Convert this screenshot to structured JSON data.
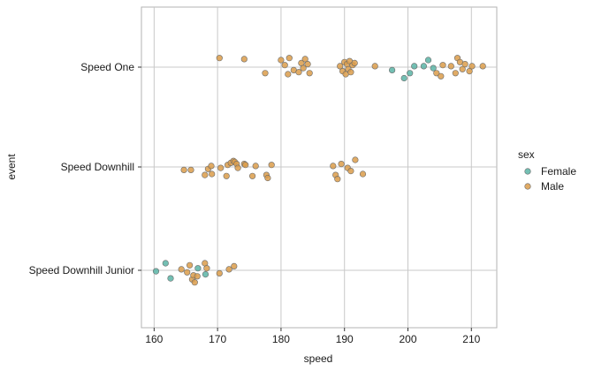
{
  "chart_data": {
    "type": "scatter",
    "xlabel": "speed",
    "ylabel": "event",
    "xlim": [
      158,
      214
    ],
    "x_ticks": [
      "160",
      "170",
      "180",
      "190",
      "200",
      "210"
    ],
    "categories": [
      "Speed One",
      "Speed Downhill",
      "Speed Downhill Junior"
    ],
    "grid": true,
    "legend": {
      "title": "sex",
      "position": "right",
      "entries": [
        {
          "label": "Female",
          "color": "#5ab4a6"
        },
        {
          "label": "Male",
          "color": "#db9c4a"
        }
      ]
    },
    "series": [
      {
        "name": "Female",
        "color": "#5ab4a6",
        "points": [
          {
            "category": "Speed One",
            "x": 197.5,
            "jitter": -0.03
          },
          {
            "category": "Speed One",
            "x": 199.4,
            "jitter": -0.11
          },
          {
            "category": "Speed One",
            "x": 200.3,
            "jitter": -0.06
          },
          {
            "category": "Speed One",
            "x": 201.0,
            "jitter": 0.01
          },
          {
            "category": "Speed One",
            "x": 202.5,
            "jitter": 0.01
          },
          {
            "category": "Speed One",
            "x": 203.2,
            "jitter": 0.07
          },
          {
            "category": "Speed One",
            "x": 204.0,
            "jitter": -0.01
          },
          {
            "category": "Speed Downhill Junior",
            "x": 160.3,
            "jitter": -0.01
          },
          {
            "category": "Speed Downhill Junior",
            "x": 161.8,
            "jitter": 0.07
          },
          {
            "category": "Speed Downhill Junior",
            "x": 162.6,
            "jitter": -0.08
          },
          {
            "category": "Speed Downhill Junior",
            "x": 166.9,
            "jitter": 0.02
          },
          {
            "category": "Speed Downhill Junior",
            "x": 168.1,
            "jitter": -0.04
          }
        ]
      },
      {
        "name": "Male",
        "color": "#db9c4a",
        "points": [
          {
            "category": "Speed One",
            "x": 170.3,
            "jitter": 0.09
          },
          {
            "category": "Speed One",
            "x": 174.2,
            "jitter": 0.08
          },
          {
            "category": "Speed One",
            "x": 177.5,
            "jitter": -0.06
          },
          {
            "category": "Speed One",
            "x": 180.0,
            "jitter": 0.07
          },
          {
            "category": "Speed One",
            "x": 180.6,
            "jitter": 0.02
          },
          {
            "category": "Speed One",
            "x": 181.1,
            "jitter": -0.07
          },
          {
            "category": "Speed One",
            "x": 181.3,
            "jitter": 0.09
          },
          {
            "category": "Speed One",
            "x": 182.0,
            "jitter": -0.03
          },
          {
            "category": "Speed One",
            "x": 182.8,
            "jitter": -0.05
          },
          {
            "category": "Speed One",
            "x": 183.2,
            "jitter": 0.04
          },
          {
            "category": "Speed One",
            "x": 183.5,
            "jitter": -0.01
          },
          {
            "category": "Speed One",
            "x": 183.8,
            "jitter": 0.08
          },
          {
            "category": "Speed One",
            "x": 184.2,
            "jitter": 0.03
          },
          {
            "category": "Speed One",
            "x": 184.5,
            "jitter": -0.06
          },
          {
            "category": "Speed One",
            "x": 189.3,
            "jitter": 0.01
          },
          {
            "category": "Speed One",
            "x": 189.7,
            "jitter": -0.04
          },
          {
            "category": "Speed One",
            "x": 190.0,
            "jitter": 0.05
          },
          {
            "category": "Speed One",
            "x": 190.2,
            "jitter": -0.07
          },
          {
            "category": "Speed One",
            "x": 190.4,
            "jitter": 0.03
          },
          {
            "category": "Speed One",
            "x": 190.6,
            "jitter": -0.02
          },
          {
            "category": "Speed One",
            "x": 190.8,
            "jitter": 0.06
          },
          {
            "category": "Speed One",
            "x": 191.0,
            "jitter": -0.05
          },
          {
            "category": "Speed One",
            "x": 191.3,
            "jitter": 0.02
          },
          {
            "category": "Speed One",
            "x": 191.6,
            "jitter": 0.04
          },
          {
            "category": "Speed One",
            "x": 194.8,
            "jitter": 0.01
          },
          {
            "category": "Speed One",
            "x": 204.5,
            "jitter": -0.06
          },
          {
            "category": "Speed One",
            "x": 205.2,
            "jitter": -0.09
          },
          {
            "category": "Speed One",
            "x": 205.5,
            "jitter": 0.02
          },
          {
            "category": "Speed One",
            "x": 206.8,
            "jitter": 0.01
          },
          {
            "category": "Speed One",
            "x": 207.5,
            "jitter": -0.06
          },
          {
            "category": "Speed One",
            "x": 207.8,
            "jitter": 0.09
          },
          {
            "category": "Speed One",
            "x": 208.2,
            "jitter": 0.05
          },
          {
            "category": "Speed One",
            "x": 208.6,
            "jitter": -0.02
          },
          {
            "category": "Speed One",
            "x": 209.0,
            "jitter": 0.03
          },
          {
            "category": "Speed One",
            "x": 209.7,
            "jitter": -0.04
          },
          {
            "category": "Speed One",
            "x": 210.1,
            "jitter": 0.01
          },
          {
            "category": "Speed One",
            "x": 211.8,
            "jitter": 0.01
          },
          {
            "category": "Speed Downhill",
            "x": 164.7,
            "jitter": -0.03
          },
          {
            "category": "Speed Downhill",
            "x": 165.8,
            "jitter": -0.03
          },
          {
            "category": "Speed Downhill",
            "x": 168.0,
            "jitter": -0.08
          },
          {
            "category": "Speed Downhill",
            "x": 168.5,
            "jitter": -0.02
          },
          {
            "category": "Speed Downhill",
            "x": 169.0,
            "jitter": 0.01
          },
          {
            "category": "Speed Downhill",
            "x": 169.1,
            "jitter": -0.07
          },
          {
            "category": "Speed Downhill",
            "x": 170.5,
            "jitter": -0.01
          },
          {
            "category": "Speed Downhill",
            "x": 171.4,
            "jitter": -0.09
          },
          {
            "category": "Speed Downhill",
            "x": 171.6,
            "jitter": 0.02
          },
          {
            "category": "Speed Downhill",
            "x": 172.1,
            "jitter": 0.04
          },
          {
            "category": "Speed Downhill",
            "x": 172.5,
            "jitter": 0.06
          },
          {
            "category": "Speed Downhill",
            "x": 172.7,
            "jitter": 0.05
          },
          {
            "category": "Speed Downhill",
            "x": 173.0,
            "jitter": 0.03
          },
          {
            "category": "Speed Downhill",
            "x": 173.2,
            "jitter": -0.01
          },
          {
            "category": "Speed Downhill",
            "x": 174.2,
            "jitter": 0.03
          },
          {
            "category": "Speed Downhill",
            "x": 174.4,
            "jitter": 0.02
          },
          {
            "category": "Speed Downhill",
            "x": 175.5,
            "jitter": -0.09
          },
          {
            "category": "Speed Downhill",
            "x": 176.0,
            "jitter": 0.01
          },
          {
            "category": "Speed Downhill",
            "x": 177.7,
            "jitter": -0.08
          },
          {
            "category": "Speed Downhill",
            "x": 177.9,
            "jitter": -0.11
          },
          {
            "category": "Speed Downhill",
            "x": 178.5,
            "jitter": 0.02
          },
          {
            "category": "Speed Downhill",
            "x": 188.2,
            "jitter": 0.01
          },
          {
            "category": "Speed Downhill",
            "x": 188.6,
            "jitter": -0.08
          },
          {
            "category": "Speed Downhill",
            "x": 188.9,
            "jitter": -0.12
          },
          {
            "category": "Speed Downhill",
            "x": 189.5,
            "jitter": 0.03
          },
          {
            "category": "Speed Downhill",
            "x": 190.5,
            "jitter": -0.01
          },
          {
            "category": "Speed Downhill",
            "x": 191.0,
            "jitter": -0.04
          },
          {
            "category": "Speed Downhill",
            "x": 191.7,
            "jitter": 0.07
          },
          {
            "category": "Speed Downhill",
            "x": 192.9,
            "jitter": -0.07
          },
          {
            "category": "Speed Downhill Junior",
            "x": 164.3,
            "jitter": 0.01
          },
          {
            "category": "Speed Downhill Junior",
            "x": 165.2,
            "jitter": -0.02
          },
          {
            "category": "Speed Downhill Junior",
            "x": 165.6,
            "jitter": 0.05
          },
          {
            "category": "Speed Downhill Junior",
            "x": 166.0,
            "jitter": -0.09
          },
          {
            "category": "Speed Downhill Junior",
            "x": 166.2,
            "jitter": -0.05
          },
          {
            "category": "Speed Downhill Junior",
            "x": 166.4,
            "jitter": -0.12
          },
          {
            "category": "Speed Downhill Junior",
            "x": 166.8,
            "jitter": -0.06
          },
          {
            "category": "Speed Downhill Junior",
            "x": 168.0,
            "jitter": 0.07
          },
          {
            "category": "Speed Downhill Junior",
            "x": 168.3,
            "jitter": 0.02
          },
          {
            "category": "Speed Downhill Junior",
            "x": 170.3,
            "jitter": -0.03
          },
          {
            "category": "Speed Downhill Junior",
            "x": 171.8,
            "jitter": 0.01
          },
          {
            "category": "Speed Downhill Junior",
            "x": 172.6,
            "jitter": 0.04
          }
        ]
      }
    ]
  }
}
